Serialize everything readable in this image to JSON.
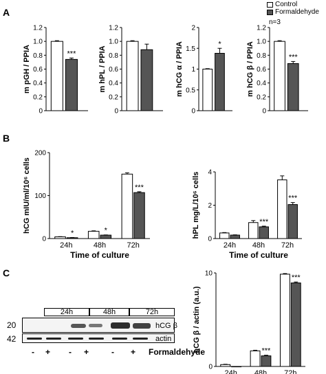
{
  "legend": {
    "control": "Control",
    "formaldehyde": "Formaldehyde",
    "n": "n=3",
    "colors": {
      "control": "#ffffff",
      "formaldehyde": "#555555"
    }
  },
  "panel_labels": {
    "a": "A",
    "b": "B",
    "c": "C"
  },
  "chart_data": [
    {
      "type": "bar",
      "panel": "A",
      "ylabel": "m pGH / PPIA",
      "ylim": [
        0,
        1.2
      ],
      "yticks": [
        "0",
        "0.2",
        "0.4",
        "0.6",
        "0.8",
        "1.0",
        "1.2"
      ],
      "series": [
        {
          "name": "Control",
          "values": [
            1.0
          ],
          "err": [
            0.01
          ]
        },
        {
          "name": "Formaldehyde",
          "values": [
            0.74
          ],
          "err": [
            0.02
          ]
        }
      ],
      "annotations": [
        "***"
      ]
    },
    {
      "type": "bar",
      "panel": "A",
      "ylabel": "m hPL / PPIA",
      "ylim": [
        0,
        1.2
      ],
      "yticks": [
        "0",
        "0.2",
        "0.4",
        "0.6",
        "0.8",
        "1.0",
        "1.2"
      ],
      "series": [
        {
          "name": "Control",
          "values": [
            1.0
          ],
          "err": [
            0.01
          ]
        },
        {
          "name": "Formaldehyde",
          "values": [
            0.88
          ],
          "err": [
            0.08
          ]
        }
      ],
      "annotations": [
        ""
      ]
    },
    {
      "type": "bar",
      "panel": "A",
      "ylabel": "m hCG α / PPIA",
      "ylim": [
        0,
        2
      ],
      "yticks": [
        "0",
        "0.5",
        "1",
        "1.5",
        "2"
      ],
      "series": [
        {
          "name": "Control",
          "values": [
            1.0
          ],
          "err": [
            0.01
          ]
        },
        {
          "name": "Formaldehyde",
          "values": [
            1.38
          ],
          "err": [
            0.12
          ]
        }
      ],
      "annotations": [
        "*"
      ]
    },
    {
      "type": "bar",
      "panel": "A",
      "ylabel": "m hCG β / PPIA",
      "ylim": [
        0,
        1.2
      ],
      "yticks": [
        "0",
        "0.2",
        "0.4",
        "0.6",
        "0.8",
        "1.0",
        "1.2"
      ],
      "series": [
        {
          "name": "Control",
          "values": [
            1.0
          ],
          "err": [
            0.01
          ]
        },
        {
          "name": "Formaldehyde",
          "values": [
            0.68
          ],
          "err": [
            0.03
          ]
        }
      ],
      "annotations": [
        "***"
      ]
    },
    {
      "type": "bar",
      "panel": "B",
      "ylabel": "hCG mIU/ml/10⁶ cells",
      "xlabel": "Time of culture",
      "categories": [
        "24h",
        "48h",
        "72h"
      ],
      "ylim": [
        0,
        200
      ],
      "yticks": [
        "0",
        "100",
        "200"
      ],
      "series": [
        {
          "name": "Control",
          "values": [
            4,
            17,
            150
          ],
          "err": [
            0.5,
            1,
            3
          ]
        },
        {
          "name": "Formaldehyde",
          "values": [
            2,
            8,
            107
          ],
          "err": [
            0.5,
            0.5,
            2
          ]
        }
      ],
      "annotations": [
        "*",
        "*",
        "***"
      ]
    },
    {
      "type": "bar",
      "panel": "B",
      "ylabel": "hPL mg/L/10⁶ cells",
      "xlabel": "Time of culture",
      "categories": [
        "24h",
        "48h",
        "72h"
      ],
      "ylim": [
        0,
        5
      ],
      "yticks": [
        "0",
        "2",
        "4"
      ],
      "series": [
        {
          "name": "Control",
          "values": [
            0.42,
            1.2,
            4.4
          ],
          "err": [
            0.03,
            0.15,
            0.3
          ]
        },
        {
          "name": "Formaldehyde",
          "values": [
            0.26,
            0.88,
            2.55
          ],
          "err": [
            0.02,
            0.05,
            0.15
          ]
        }
      ],
      "annotations": [
        "",
        "***",
        "***"
      ]
    },
    {
      "type": "bar",
      "panel": "C",
      "ylabel": "hCG β / actin (a.u.)",
      "xlabel": "Time of culture",
      "categories": [
        "24h",
        "48h",
        "72h"
      ],
      "ylim": [
        0,
        15
      ],
      "yticks": [
        "0",
        "10"
      ],
      "series": [
        {
          "name": "Control",
          "values": [
            0.3,
            2.5,
            14.8
          ],
          "err": [
            0.05,
            0.1,
            0.1
          ]
        },
        {
          "name": "Formaldehyde",
          "values": [
            0,
            1.7,
            13.4
          ],
          "err": [
            0,
            0.1,
            0.15
          ]
        }
      ],
      "annotations": [
        "",
        "***",
        "***"
      ]
    }
  ],
  "blot": {
    "lanes": [
      "24h",
      "48h",
      "72h"
    ],
    "mw": [
      "20",
      "42"
    ],
    "band_labels": [
      "hCG β",
      "actin"
    ],
    "treatment_signs": [
      "-",
      "+",
      "-",
      "+",
      "-",
      "+"
    ],
    "treatment_label": "Formaldehyde"
  }
}
